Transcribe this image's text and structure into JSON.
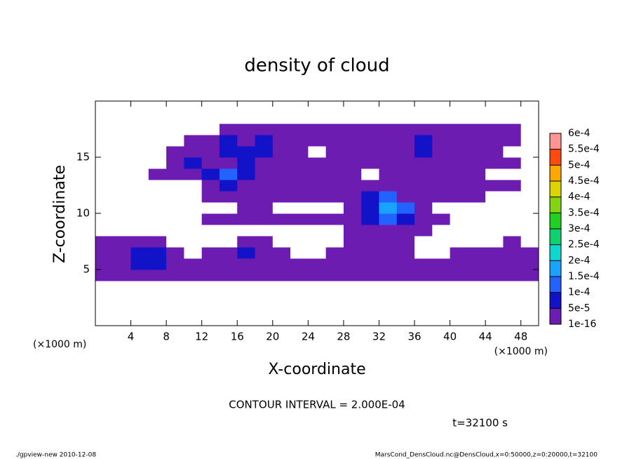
{
  "chart_data": {
    "type": "contour",
    "title": "density of cloud",
    "xlabel": "X-coordinate",
    "ylabel": "Z-coordinate",
    "x_unit": "(×1000 m)",
    "y_unit": "(×1000 m)",
    "interval_note": "CONTOUR INTERVAL = 2.000E-04",
    "time_note": "t=32100 s",
    "footer_left": "./gpview-new  2010-12-08",
    "footer_right": "MarsCond_DensCloud.nc@DensCloud,x=0:50000,z=0:20000,t=32100",
    "xlim": [
      0,
      50
    ],
    "ylim": [
      0,
      20
    ],
    "xticks": [
      4,
      8,
      12,
      16,
      20,
      24,
      28,
      32,
      36,
      40,
      44,
      48
    ],
    "yticks": [
      5,
      10,
      15
    ],
    "xbins": [
      0,
      2,
      4,
      6,
      8,
      10,
      12,
      14,
      16,
      18,
      20,
      22,
      24,
      26,
      28,
      30,
      32,
      34,
      36,
      38,
      40,
      42,
      44,
      46,
      48,
      50
    ],
    "ybins": [
      0,
      1,
      2,
      3,
      4,
      5,
      6,
      7,
      8,
      9,
      10,
      11,
      12,
      13,
      14,
      15,
      16,
      17,
      18,
      19,
      20
    ],
    "z": [
      [
        0,
        0,
        0,
        0,
        0,
        0,
        0,
        0,
        0,
        0,
        0,
        0,
        0,
        0,
        0,
        0,
        0,
        0,
        0,
        0,
        0,
        0,
        0,
        0,
        0
      ],
      [
        0,
        0,
        0,
        0,
        0,
        0,
        0,
        0,
        0,
        0,
        0,
        0,
        0,
        0,
        0,
        0,
        0,
        0,
        0,
        0,
        0,
        0,
        0,
        0,
        0
      ],
      [
        0,
        0,
        0,
        0,
        0,
        0,
        0,
        0,
        0,
        0,
        0,
        0,
        0,
        0,
        0,
        0,
        0,
        0,
        0,
        0,
        0,
        0,
        0,
        0,
        0
      ],
      [
        0,
        0,
        0,
        0,
        0,
        0,
        0,
        0,
        0,
        0,
        0,
        0,
        0,
        0,
        0,
        0,
        0,
        0,
        0,
        0,
        0,
        0,
        0,
        0,
        0
      ],
      [
        3e-05,
        3e-05,
        3e-05,
        3e-05,
        3e-05,
        3e-05,
        3e-05,
        3e-05,
        3e-05,
        3e-05,
        3e-05,
        3e-05,
        3e-05,
        3e-05,
        3e-05,
        3e-05,
        3e-05,
        3e-05,
        3e-05,
        3e-05,
        3e-05,
        3e-05,
        3e-05,
        3e-05,
        3e-05
      ],
      [
        3e-05,
        3e-05,
        7e-05,
        7e-05,
        3e-05,
        3e-05,
        3e-05,
        3e-05,
        3e-05,
        3e-05,
        3e-05,
        3e-05,
        3e-05,
        3e-05,
        3e-05,
        3e-05,
        3e-05,
        3e-05,
        3e-05,
        3e-05,
        3e-05,
        3e-05,
        3e-05,
        3e-05,
        3e-05
      ],
      [
        3e-05,
        3e-05,
        7e-05,
        7e-05,
        3e-05,
        0,
        3e-05,
        3e-05,
        7e-05,
        3e-05,
        3e-05,
        0,
        0,
        3e-05,
        3e-05,
        3e-05,
        3e-05,
        3e-05,
        0,
        0,
        3e-05,
        3e-05,
        3e-05,
        3e-05,
        3e-05
      ],
      [
        3e-05,
        3e-05,
        3e-05,
        3e-05,
        0,
        0,
        0,
        0,
        3e-05,
        3e-05,
        0,
        0,
        0,
        0,
        3e-05,
        3e-05,
        3e-05,
        3e-05,
        0,
        0,
        0,
        0,
        0,
        3e-05,
        0
      ],
      [
        0,
        0,
        0,
        0,
        0,
        0,
        0,
        0,
        0,
        0,
        0,
        0,
        0,
        0,
        3e-05,
        3e-05,
        3e-05,
        3e-05,
        3e-05,
        0,
        0,
        0,
        0,
        0,
        0
      ],
      [
        0,
        0,
        0,
        0,
        0,
        0,
        3e-05,
        3e-05,
        3e-05,
        3e-05,
        3e-05,
        3e-05,
        3e-05,
        3e-05,
        3e-05,
        7e-05,
        0.00012,
        7e-05,
        3e-05,
        3e-05,
        0,
        0,
        0,
        0,
        0
      ],
      [
        0,
        0,
        0,
        0,
        0,
        0,
        0,
        0,
        3e-05,
        3e-05,
        0,
        0,
        0,
        0,
        3e-05,
        7e-05,
        0.00017,
        0.00012,
        3e-05,
        0,
        0,
        0,
        0,
        0,
        0
      ],
      [
        0,
        0,
        0,
        0,
        0,
        0,
        3e-05,
        3e-05,
        3e-05,
        3e-05,
        3e-05,
        3e-05,
        3e-05,
        3e-05,
        3e-05,
        7e-05,
        0.00012,
        3e-05,
        3e-05,
        3e-05,
        3e-05,
        3e-05,
        0,
        0,
        0
      ],
      [
        0,
        0,
        0,
        0,
        0,
        0,
        3e-05,
        7e-05,
        3e-05,
        3e-05,
        3e-05,
        3e-05,
        3e-05,
        3e-05,
        3e-05,
        3e-05,
        3e-05,
        3e-05,
        3e-05,
        3e-05,
        3e-05,
        3e-05,
        3e-05,
        3e-05,
        0
      ],
      [
        0,
        0,
        0,
        3e-05,
        3e-05,
        3e-05,
        7e-05,
        0.00012,
        7e-05,
        3e-05,
        3e-05,
        3e-05,
        3e-05,
        3e-05,
        3e-05,
        0,
        3e-05,
        3e-05,
        3e-05,
        3e-05,
        3e-05,
        3e-05,
        0,
        0,
        0
      ],
      [
        0,
        0,
        0,
        0,
        3e-05,
        7e-05,
        3e-05,
        3e-05,
        7e-05,
        3e-05,
        3e-05,
        3e-05,
        3e-05,
        3e-05,
        3e-05,
        3e-05,
        3e-05,
        3e-05,
        3e-05,
        3e-05,
        3e-05,
        3e-05,
        3e-05,
        3e-05,
        0
      ],
      [
        0,
        0,
        0,
        0,
        3e-05,
        3e-05,
        3e-05,
        7e-05,
        7e-05,
        7e-05,
        3e-05,
        3e-05,
        0,
        3e-05,
        3e-05,
        3e-05,
        3e-05,
        3e-05,
        7e-05,
        3e-05,
        3e-05,
        3e-05,
        3e-05,
        0,
        0
      ],
      [
        0,
        0,
        0,
        0,
        0,
        3e-05,
        3e-05,
        7e-05,
        3e-05,
        7e-05,
        3e-05,
        3e-05,
        3e-05,
        3e-05,
        3e-05,
        3e-05,
        3e-05,
        3e-05,
        7e-05,
        3e-05,
        3e-05,
        3e-05,
        3e-05,
        3e-05,
        0
      ],
      [
        0,
        0,
        0,
        0,
        0,
        0,
        0,
        3e-05,
        3e-05,
        3e-05,
        3e-05,
        3e-05,
        3e-05,
        3e-05,
        3e-05,
        3e-05,
        3e-05,
        3e-05,
        3e-05,
        3e-05,
        3e-05,
        3e-05,
        3e-05,
        3e-05,
        0
      ],
      [
        0,
        0,
        0,
        0,
        0,
        0,
        0,
        0,
        0,
        0,
        0,
        0,
        0,
        0,
        0,
        0,
        0,
        0,
        0,
        0,
        0,
        0,
        0,
        0,
        0
      ],
      [
        0,
        0,
        0,
        0,
        0,
        0,
        0,
        0,
        0,
        0,
        0,
        0,
        0,
        0,
        0,
        0,
        0,
        0,
        0,
        0,
        0,
        0,
        0,
        0,
        0
      ]
    ],
    "colorbar": {
      "levels": [
        {
          "value": 1e-16,
          "label": "1e-16"
        },
        {
          "value": 5e-05,
          "label": "5e-5"
        },
        {
          "value": 0.0001,
          "label": "1e-4"
        },
        {
          "value": 0.00015,
          "label": "1.5e-4"
        },
        {
          "value": 0.0002,
          "label": "2e-4"
        },
        {
          "value": 0.00025,
          "label": "2.5e-4"
        },
        {
          "value": 0.0003,
          "label": "3e-4"
        },
        {
          "value": 0.00035,
          "label": "3.5e-4"
        },
        {
          "value": 0.0004,
          "label": "4e-4"
        },
        {
          "value": 0.00045,
          "label": "4.5e-4"
        },
        {
          "value": 0.0005,
          "label": "5e-4"
        },
        {
          "value": 0.00055,
          "label": "5.5e-4"
        },
        {
          "value": 0.0006,
          "label": "6e-4"
        }
      ],
      "colors": [
        "#6c1cb0",
        "#1212c8",
        "#2262ff",
        "#1aa2ff",
        "#10d6d0",
        "#10d070",
        "#22d022",
        "#84d210",
        "#dcd400",
        "#ffa800",
        "#ff4a10",
        "#ff9494"
      ]
    }
  }
}
